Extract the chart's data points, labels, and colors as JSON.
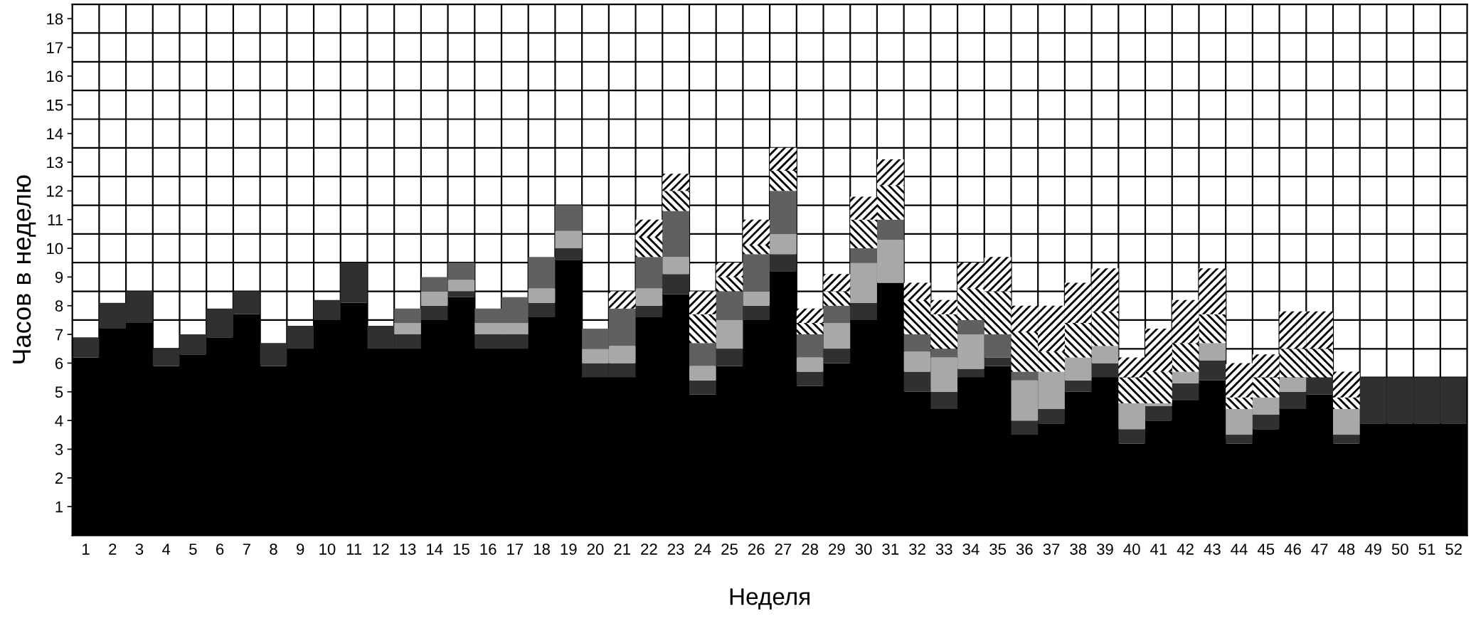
{
  "chart_data": {
    "type": "bar",
    "stacked": true,
    "xlabel": "Неделя",
    "ylabel": "Часов в неделю",
    "categories": [
      "1",
      "2",
      "3",
      "4",
      "5",
      "6",
      "7",
      "8",
      "9",
      "10",
      "11",
      "12",
      "13",
      "14",
      "15",
      "16",
      "17",
      "18",
      "19",
      "20",
      "21",
      "22",
      "23",
      "24",
      "25",
      "26",
      "27",
      "28",
      "29",
      "30",
      "31",
      "32",
      "33",
      "34",
      "35",
      "36",
      "37",
      "38",
      "39",
      "40",
      "41",
      "42",
      "43",
      "44",
      "45",
      "46",
      "47",
      "48",
      "49",
      "50",
      "51",
      "52"
    ],
    "ylim": [
      0,
      18.5
    ],
    "yticks": [
      1,
      2,
      3,
      4,
      5,
      6,
      7,
      8,
      9,
      10,
      11,
      12,
      13,
      14,
      15,
      16,
      17,
      18
    ],
    "grid": true,
    "series": [
      {
        "color": "#000000",
        "values": [
          6.2,
          7.2,
          7.4,
          5.9,
          6.3,
          6.9,
          7.7,
          5.9,
          6.5,
          7.5,
          8.1,
          6.5,
          6.5,
          7.5,
          8.3,
          6.5,
          6.5,
          7.6,
          9.6,
          5.5,
          5.5,
          7.6,
          8.4,
          4.9,
          5.9,
          7.5,
          9.2,
          5.2,
          6.0,
          7.5,
          8.8,
          5.0,
          4.4,
          5.5,
          5.9,
          3.5,
          3.9,
          5.0,
          5.5,
          3.2,
          4.0,
          4.7,
          5.4,
          3.2,
          3.7,
          4.4,
          4.9,
          3.2,
          3.9,
          3.9,
          3.9,
          3.9
        ]
      },
      {
        "color": "#303030",
        "values": [
          0.7,
          0.9,
          1.1,
          0.6,
          0.7,
          1.0,
          0.8,
          0.8,
          0.8,
          0.7,
          1.4,
          0.8,
          0.5,
          0.5,
          0.2,
          0.5,
          0.5,
          0.5,
          0.4,
          0.5,
          0.5,
          0.4,
          0.7,
          0.5,
          0.6,
          0.5,
          0.6,
          0.5,
          0.5,
          0.6,
          null,
          0.7,
          0.6,
          0.3,
          0.3,
          0.5,
          0.5,
          0.4,
          0.5,
          0.5,
          0.5,
          0.6,
          0.7,
          0.3,
          0.5,
          0.6,
          0.6,
          0.3,
          1.6,
          1.6,
          1.6,
          1.6
        ]
      },
      {
        "color": "#a8a8a8",
        "values": [
          null,
          null,
          null,
          null,
          null,
          null,
          null,
          null,
          null,
          null,
          null,
          null,
          0.4,
          0.5,
          0.4,
          0.4,
          0.4,
          0.5,
          0.6,
          0.5,
          0.6,
          0.6,
          0.6,
          0.5,
          1.0,
          0.5,
          0.7,
          0.5,
          0.9,
          1.4,
          1.5,
          0.7,
          1.2,
          1.2,
          null,
          1.4,
          1.3,
          0.8,
          0.6,
          0.9,
          0.1,
          0.4,
          0.6,
          0.9,
          0.6,
          0.5,
          null,
          0.9,
          null,
          null,
          null,
          null
        ]
      },
      {
        "color": "#606060",
        "values": [
          null,
          null,
          null,
          null,
          null,
          null,
          null,
          null,
          null,
          null,
          null,
          null,
          0.5,
          0.5,
          0.6,
          0.5,
          0.9,
          1.1,
          0.9,
          0.7,
          1.3,
          1.1,
          1.6,
          0.8,
          1.0,
          1.3,
          1.5,
          0.8,
          0.6,
          0.5,
          0.7,
          0.6,
          0.3,
          0.5,
          0.8,
          0.3,
          null,
          null,
          null,
          null,
          null,
          null,
          null,
          null,
          null,
          null,
          null,
          null,
          null,
          null,
          null,
          null
        ]
      },
      {
        "color": "#ffffff",
        "values": [
          null,
          null,
          null,
          null,
          null,
          null,
          null,
          null,
          null,
          null,
          null,
          null,
          null,
          null,
          null,
          null,
          null,
          null,
          null,
          null,
          null,
          0.7,
          0.7,
          1.0,
          0.5,
          0.3,
          0.7,
          0.4,
          0.5,
          1.0,
          1.2,
          1.2,
          1.2,
          1.1,
          1.5,
          1.4,
          0.7,
          1.2,
          1.2,
          0.9,
          1.1,
          1.0,
          1.0,
          0.4,
          0.7,
          1.0,
          1.0,
          0.4,
          null,
          null,
          null,
          null
        ]
      },
      {
        "color": "#ffffff",
        "values": [
          null,
          null,
          null,
          null,
          null,
          null,
          null,
          null,
          null,
          null,
          null,
          null,
          null,
          null,
          null,
          null,
          null,
          null,
          null,
          null,
          0.6,
          0.6,
          0.6,
          0.8,
          0.5,
          0.9,
          0.8,
          0.5,
          0.6,
          0.8,
          0.9,
          0.6,
          0.5,
          0.9,
          1.2,
          0.9,
          1.6,
          1.4,
          1.5,
          0.7,
          1.5,
          1.5,
          1.6,
          1.2,
          0.8,
          1.3,
          1.3,
          0.9,
          null,
          null,
          null,
          null
        ]
      }
    ]
  }
}
